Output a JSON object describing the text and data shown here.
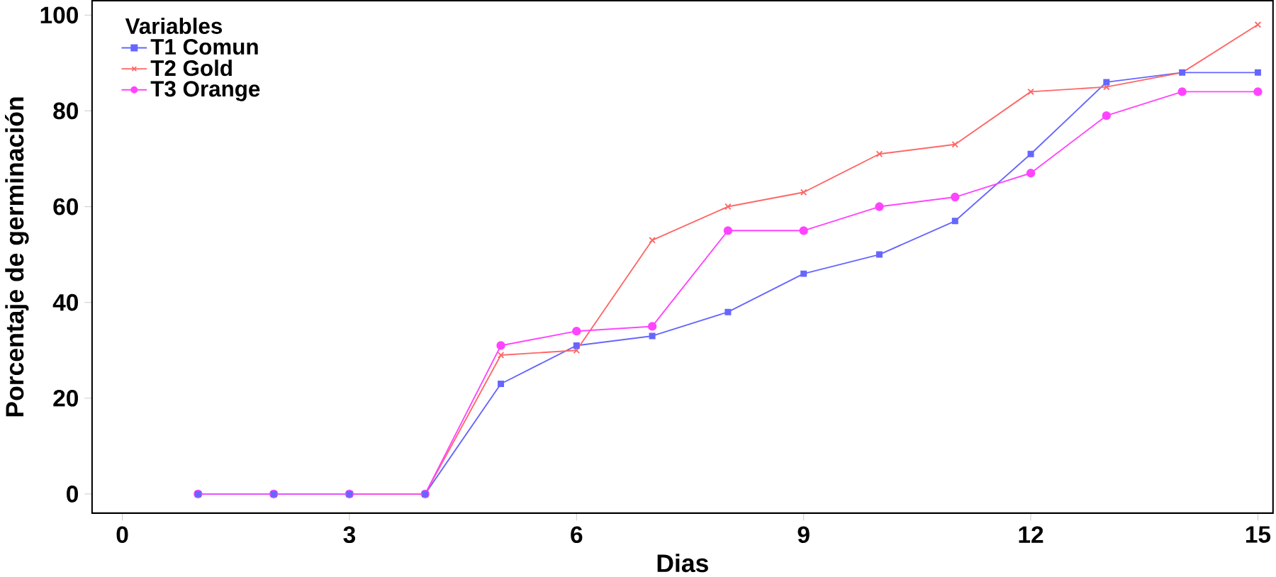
{
  "chart_data": {
    "type": "line",
    "xlabel": "Dias",
    "ylabel": "Porcentaje de germinación",
    "legend_title": "Variables",
    "legend": "top left",
    "grid": false,
    "line_style": "solid",
    "x": [
      1,
      2,
      3,
      4,
      5,
      6,
      7,
      8,
      9,
      10,
      11,
      12,
      13,
      14,
      15
    ],
    "xlim": [
      -0.4,
      15.2
    ],
    "xticks": [
      0,
      3,
      6,
      9,
      12,
      15
    ],
    "ylim": [
      -4,
      103
    ],
    "yticks": [
      0,
      20,
      40,
      60,
      80,
      100
    ],
    "series": [
      {
        "name": "T1 Comun",
        "color": "#6666ff",
        "marker": "square",
        "values": [
          0,
          0,
          0,
          0,
          23,
          31,
          33,
          38,
          46,
          50,
          57,
          71,
          86,
          88,
          88
        ]
      },
      {
        "name": "T2 Gold",
        "color": "#ff6666",
        "marker": "cross",
        "values": [
          null,
          null,
          0,
          0,
          29,
          30,
          53,
          60,
          63,
          71,
          73,
          84,
          85,
          88,
          98
        ]
      },
      {
        "name": "T3 Orange",
        "color": "#ff44ff",
        "marker": "circle",
        "values": [
          0,
          0,
          0,
          0,
          31,
          34,
          35,
          55,
          55,
          60,
          62,
          67,
          79,
          84,
          84
        ]
      }
    ]
  }
}
